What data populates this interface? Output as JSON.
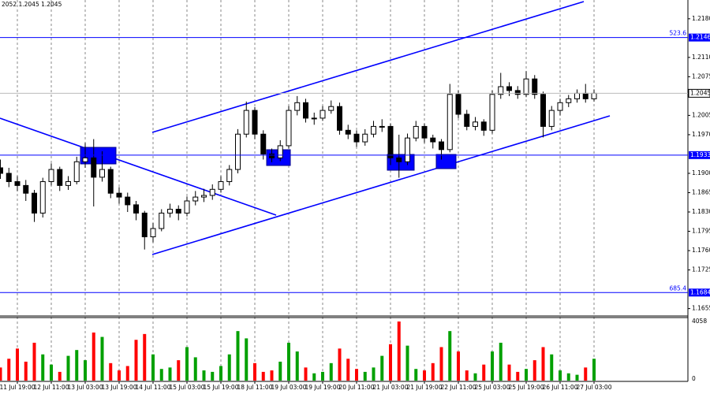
{
  "chart_data": {
    "type": "candlestick",
    "header": "2052 1.2045 1.2045",
    "categories": [
      null,
      null,
      "11 Jul 19:00",
      null,
      null,
      null,
      "12 Jul 11:00",
      null,
      null,
      null,
      "13 Jul 03:00",
      null,
      null,
      null,
      "13 Jul 19:00",
      null,
      null,
      null,
      "14 Jul 11:00",
      null,
      null,
      null,
      "15 Jul 03:00",
      null,
      null,
      null,
      "15 Jul 19:00",
      null,
      null,
      null,
      "18 Jul 11:00",
      null,
      null,
      null,
      "19 Jul 03:00",
      null,
      null,
      null,
      "19 Jul 19:00",
      null,
      null,
      null,
      "20 Jul 11:00",
      null,
      null,
      null,
      "21 Jul 03:00",
      null,
      null,
      null,
      "21 Jul 19:00",
      null,
      null,
      null,
      "22 Jul 11:00",
      null,
      null,
      null,
      "25 Jul 03:00",
      null,
      null,
      null,
      "25 Jul 19:00",
      null,
      null,
      null,
      "26 Jul 11:00",
      null,
      null,
      null,
      "27 Jul 03:00"
    ],
    "open": [
      1.191,
      1.19,
      1.1885,
      1.1878,
      1.1864,
      1.1828,
      1.1885,
      1.1907,
      1.1878,
      1.1885,
      1.1921,
      1.1928,
      1.1893,
      1.1907,
      1.1864,
      1.1857,
      1.1843,
      1.1828,
      1.1785,
      1.18,
      1.1828,
      1.1835,
      1.1828,
      1.185,
      1.1857,
      1.186,
      1.1871,
      1.1885,
      1.1907,
      1.1971,
      1.2014,
      1.1971,
      1.1935,
      1.1928,
      1.195,
      1.2014,
      1.2028,
      1.2,
      1.2,
      1.2014,
      1.2021,
      1.1978,
      1.1971,
      1.1957,
      1.1971,
      1.1985,
      1.1985,
      1.1928,
      1.1921,
      1.1964,
      1.1985,
      1.1964,
      1.1957,
      1.1943,
      1.2043,
      1.2007,
      1.1985,
      1.1993,
      1.1978,
      1.2043,
      1.2057,
      1.205,
      1.2043,
      1.2071,
      1.2043,
      1.1985,
      1.2014,
      1.2028,
      1.2035,
      1.2045,
      1.2035
    ],
    "high": [
      1.1925,
      1.191,
      1.1895,
      1.1888,
      1.187,
      1.1892,
      1.1918,
      1.1912,
      1.1895,
      1.193,
      1.1955,
      1.1962,
      1.194,
      1.1912,
      1.1875,
      1.1865,
      1.185,
      1.1832,
      1.181,
      1.1835,
      1.1845,
      1.1842,
      1.1858,
      1.1868,
      1.1872,
      1.188,
      1.1895,
      1.1915,
      1.198,
      1.203,
      1.202,
      1.1978,
      1.1945,
      1.196,
      1.2022,
      1.204,
      1.2035,
      1.201,
      1.2022,
      1.2032,
      1.2028,
      1.1988,
      1.1978,
      1.198,
      1.1995,
      1.1998,
      1.199,
      1.197,
      1.1972,
      1.1995,
      1.199,
      1.197,
      1.1962,
      1.2062,
      1.205,
      1.2015,
      1.2002,
      1.1998,
      1.205,
      1.2082,
      1.2065,
      1.2058,
      1.2085,
      1.2078,
      1.2048,
      1.2022,
      1.2035,
      1.2042,
      1.2052,
      1.2062,
      1.2052
    ],
    "low": [
      1.189,
      1.1875,
      1.1868,
      1.185,
      1.1812,
      1.182,
      1.1878,
      1.1868,
      1.187,
      1.188,
      1.191,
      1.184,
      1.1885,
      1.1855,
      1.1845,
      1.183,
      1.1815,
      1.1762,
      1.1775,
      1.1795,
      1.182,
      1.1815,
      1.1822,
      1.1842,
      1.1848,
      1.1852,
      1.1865,
      1.1878,
      1.19,
      1.1965,
      1.1962,
      1.1925,
      1.192,
      1.1922,
      1.1945,
      1.2005,
      1.1992,
      1.1988,
      1.1995,
      1.2008,
      1.197,
      1.1962,
      1.1948,
      1.195,
      1.1965,
      1.1975,
      1.1915,
      1.1892,
      1.1915,
      1.1958,
      1.1955,
      1.1945,
      1.1925,
      1.1938,
      1.2,
      1.1978,
      1.1978,
      1.1968,
      1.1972,
      1.2035,
      1.204,
      1.2035,
      1.2038,
      1.2035,
      1.1965,
      1.1978,
      1.2005,
      1.202,
      1.2028,
      1.2028,
      1.203
    ],
    "close": [
      1.19,
      1.1885,
      1.1878,
      1.1864,
      1.1828,
      1.1885,
      1.1907,
      1.1878,
      1.1885,
      1.1921,
      1.1928,
      1.1893,
      1.1907,
      1.1864,
      1.1857,
      1.1843,
      1.1828,
      1.1785,
      1.18,
      1.1828,
      1.1835,
      1.1828,
      1.185,
      1.1857,
      1.186,
      1.1871,
      1.1885,
      1.1907,
      1.1971,
      1.2014,
      1.1971,
      1.1935,
      1.1928,
      1.195,
      1.2014,
      1.2028,
      1.2,
      1.2,
      1.2014,
      1.2021,
      1.1978,
      1.1971,
      1.1957,
      1.1971,
      1.1985,
      1.1985,
      1.1928,
      1.1921,
      1.1964,
      1.1985,
      1.1964,
      1.1957,
      1.1943,
      1.2043,
      1.2007,
      1.1985,
      1.1993,
      1.1978,
      1.2043,
      1.2057,
      1.205,
      1.2043,
      1.2071,
      1.2043,
      1.1985,
      1.2014,
      1.2028,
      1.2035,
      1.2045,
      1.2035,
      1.2045
    ],
    "volume": [
      900,
      1500,
      2200,
      1300,
      2600,
      1800,
      1100,
      600,
      1700,
      2100,
      1400,
      3300,
      3000,
      1200,
      700,
      1000,
      2800,
      3200,
      1800,
      800,
      900,
      1400,
      2300,
      1600,
      700,
      600,
      1000,
      1800,
      3400,
      2900,
      1200,
      600,
      700,
      1300,
      2600,
      2000,
      900,
      500,
      600,
      1200,
      2200,
      1500,
      800,
      600,
      900,
      1700,
      2500,
      4058,
      2400,
      800,
      700,
      1200,
      2300,
      3400,
      2000,
      700,
      500,
      1100,
      2000,
      2600,
      1100,
      600,
      800,
      1400,
      2300,
      1800,
      700,
      500,
      400,
      900,
      1500
    ],
    "candle_color": "#000000",
    "bull_volume_color": "#00a000",
    "bear_volume_color": "#ff0000",
    "level_color": "#0000ff",
    "ylim": [
      1.1643,
      1.2214
    ],
    "yticks": [
      {
        "value": 1.218,
        "label": "1.2180"
      },
      {
        "value": 1.211,
        "label": "1.2110"
      },
      1.2075,
      {
        "value": 1.2005,
        "label": "1.2005"
      },
      {
        "value": 1.197,
        "label": "1.1970"
      },
      {
        "value": 1.19,
        "label": "1.1900"
      },
      1.1865,
      {
        "value": 1.183,
        "label": "1.1830"
      },
      1.1795,
      {
        "value": 1.176,
        "label": "1.1760"
      },
      1.1725,
      1.1655
    ],
    "levels": [
      {
        "price": 1.2146,
        "tag": "523.6"
      },
      {
        "price": 1.1933
      },
      {
        "price": 1.1684,
        "tag": "685.4"
      }
    ],
    "last_price": 1.2045,
    "volume_ylim": [
      0,
      4058
    ],
    "volume_yticks": [
      4058,
      0
    ],
    "grid": true
  }
}
